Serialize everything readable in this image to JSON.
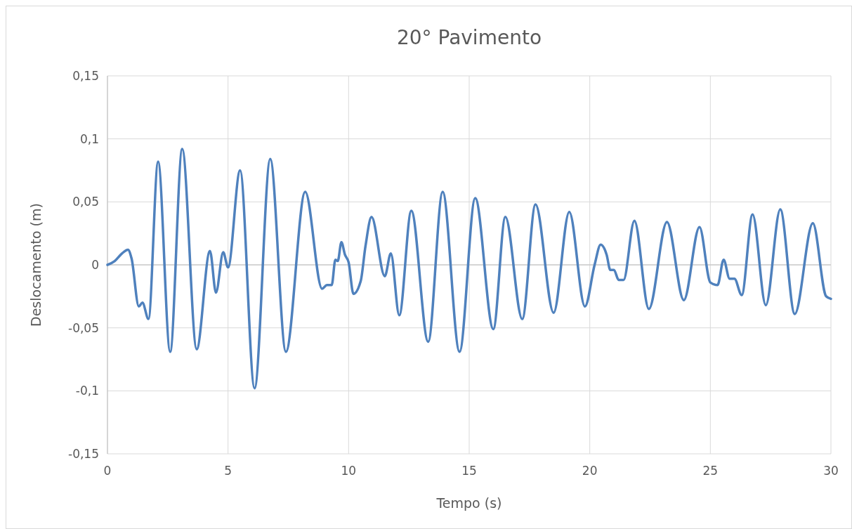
{
  "chart_data": {
    "type": "line",
    "title": "20° Pavimento",
    "xlabel": "Tempo (s)",
    "ylabel": "Deslocamento (m)",
    "x": [
      0,
      0.3,
      0.6,
      0.85,
      1.0,
      1.3,
      1.45,
      1.7,
      2.1,
      2.6,
      3.1,
      3.7,
      4.25,
      4.5,
      4.8,
      5.0,
      5.5,
      6.1,
      6.75,
      7.4,
      8.2,
      8.9,
      9.1,
      9.3,
      9.45,
      9.55,
      9.7,
      9.85,
      10.0,
      10.2,
      10.5,
      10.7,
      10.95,
      11.5,
      11.75,
      12.1,
      12.6,
      13.3,
      13.9,
      14.6,
      15.25,
      16.0,
      16.5,
      17.2,
      17.75,
      18.5,
      19.15,
      19.8,
      20.2,
      20.45,
      20.7,
      20.85,
      21.0,
      21.2,
      21.4,
      21.85,
      22.45,
      23.2,
      23.9,
      24.55,
      25.0,
      25.3,
      25.55,
      25.8,
      26.0,
      26.3,
      26.75,
      27.3,
      27.9,
      28.5,
      29.25,
      29.8,
      30
    ],
    "series": [
      {
        "color": "#4f81bd",
        "values": [
          0,
          0.003,
          0.009,
          0.012,
          0.005,
          -0.033,
          -0.03,
          -0.043,
          0.082,
          -0.069,
          0.092,
          -0.067,
          0.011,
          -0.022,
          0.01,
          -0.002,
          0.075,
          -0.098,
          0.084,
          -0.069,
          0.058,
          -0.019,
          -0.016,
          -0.016,
          0.004,
          0.003,
          0.018,
          0.008,
          0.002,
          -0.023,
          -0.013,
          0.015,
          0.038,
          -0.009,
          0.009,
          -0.04,
          0.043,
          -0.061,
          0.058,
          -0.069,
          0.053,
          -0.051,
          0.038,
          -0.043,
          0.048,
          -0.038,
          0.042,
          -0.033,
          0,
          0.016,
          0.008,
          -0.004,
          -0.004,
          -0.012,
          -0.012,
          0.035,
          -0.035,
          0.034,
          -0.028,
          0.03,
          -0.014,
          -0.016,
          0.004,
          -0.011,
          -0.011,
          -0.024,
          0.04,
          -0.032,
          0.044,
          -0.039,
          0.033,
          -0.025,
          -0.027
        ]
      }
    ],
    "xlim": [
      0,
      30
    ],
    "xticks": [
      0,
      5,
      10,
      15,
      20,
      25,
      30
    ],
    "ylim": [
      -0.15,
      0.15
    ],
    "yticks": [
      {
        "value": -0.15,
        "label": "-0,15"
      },
      {
        "value": -0.1,
        "label": "-0,1"
      },
      {
        "value": -0.05,
        "label": "-0,05"
      },
      {
        "value": 0,
        "label": "0"
      },
      {
        "value": 0.05,
        "label": "0,05"
      },
      {
        "value": 0.1,
        "label": "0,1"
      },
      {
        "value": 0.15,
        "label": "0,15"
      }
    ],
    "grid": true
  }
}
